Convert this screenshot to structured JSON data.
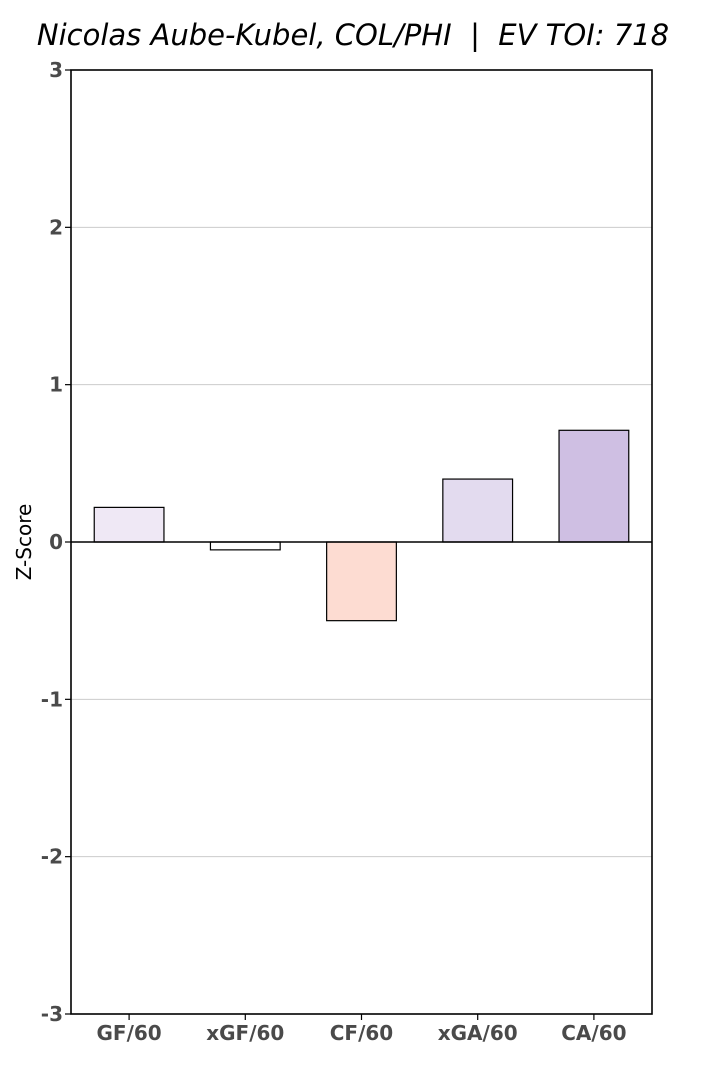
{
  "chart_data": {
    "type": "bar",
    "title": "Nicolas Aube-Kubel, COL/PHI  |  EV TOI: 718",
    "xlabel": "",
    "ylabel": "Z-Score",
    "ylim": [
      -3,
      3
    ],
    "yticks": [
      "-3",
      "-2",
      "-1",
      "0",
      "1",
      "2",
      "3"
    ],
    "categories": [
      "GF/60",
      "xGF/60",
      "CF/60",
      "xGA/60",
      "CA/60"
    ],
    "values": [
      0.22,
      -0.05,
      -0.5,
      0.4,
      0.71
    ],
    "colors": [
      "#efe8f5",
      "#ffffff",
      "#fddcd2",
      "#e3dbef",
      "#cfbfe3"
    ],
    "grid": "horizontal"
  }
}
